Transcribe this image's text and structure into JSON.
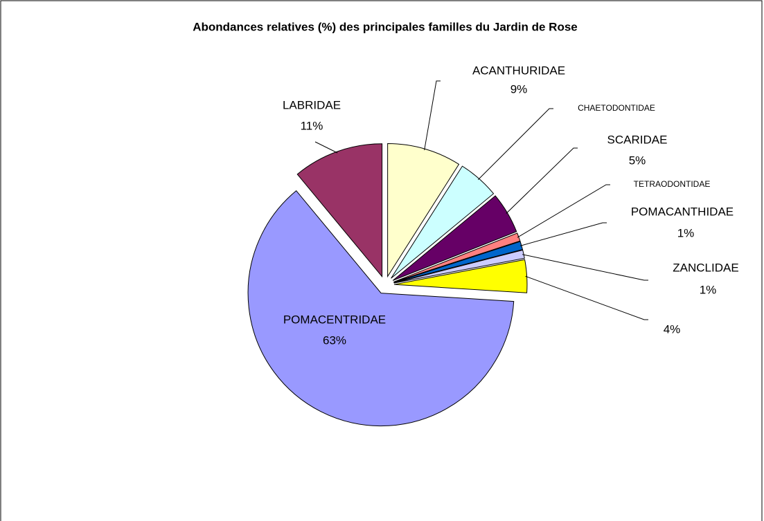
{
  "chart_data": {
    "type": "pie",
    "title": "Abondances relatives (%) des principales familles du Jardin de Rose",
    "categories": [
      "ACANTHURIDAE",
      "CHAETODONTIDAE",
      "SCARIDAE",
      "TETRAODONTIDAE",
      "POMACANTHIDAE",
      "ZANCLIDAE",
      null,
      "POMACENTRIDAE",
      "LABRIDAE"
    ],
    "values": [
      9,
      5,
      5,
      1,
      1,
      1,
      4,
      63,
      11
    ],
    "value_labels": [
      "9%",
      null,
      "5%",
      null,
      "1%",
      "1%",
      "4%",
      "63%",
      "11%"
    ],
    "colors": [
      "#ffffcc",
      "#ccffff",
      "#660066",
      "#ff8080",
      "#0066cc",
      "#ccccff",
      "#ffff00",
      "#9999ff",
      "#993366"
    ]
  }
}
